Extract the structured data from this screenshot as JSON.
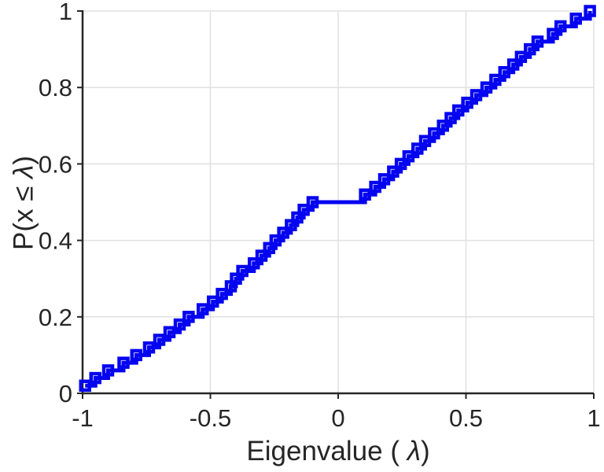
{
  "figure": {
    "background": "#ffffff"
  },
  "labels": {
    "xlabel_prefix": "Eigenvalue (  ",
    "xlabel_lambda": "λ",
    "xlabel_suffix": ")",
    "ylabel_prefix": "P(x ≤ ",
    "ylabel_lambda": "λ",
    "ylabel_suffix": ")"
  },
  "chart_data": {
    "type": "line",
    "subtype": "empirical-cdf-stairs",
    "title": "",
    "xlabel": "Eigenvalue ( λ)",
    "ylabel": "P(x ≤ λ)",
    "xlim": [
      -1,
      1
    ],
    "ylim": [
      0,
      1
    ],
    "xticks": [
      -1,
      -0.5,
      0,
      0.5,
      1
    ],
    "xtick_labels": [
      "-1",
      "-0.5",
      "0",
      "0.5",
      "1"
    ],
    "yticks": [
      0,
      0.2,
      0.4,
      0.6,
      0.8,
      1
    ],
    "ytick_labels": [
      "0",
      "0.2",
      "0.4",
      "0.6",
      "0.8",
      "1"
    ],
    "grid": true,
    "legend_position": "none",
    "colors": {
      "line": "#0404f0",
      "marker_edge": "#0404f0",
      "axis": "#262626",
      "grid": "#e0e0e0",
      "tick_label": "#262626",
      "background": "#ffffff"
    },
    "marker": "square",
    "step": true,
    "series": [
      {
        "name": "eigenvalue-cdf",
        "x": [
          -0.99,
          -0.95,
          -0.9,
          -0.84,
          -0.79,
          -0.74,
          -0.7,
          -0.66,
          -0.62,
          -0.585,
          -0.53,
          -0.49,
          -0.455,
          -0.42,
          -0.4,
          -0.375,
          -0.33,
          -0.3,
          -0.27,
          -0.245,
          -0.215,
          -0.185,
          -0.16,
          -0.135,
          -0.1,
          0.105,
          0.145,
          0.18,
          0.215,
          0.245,
          0.275,
          0.31,
          0.34,
          0.375,
          0.41,
          0.44,
          0.47,
          0.505,
          0.54,
          0.58,
          0.615,
          0.65,
          0.685,
          0.715,
          0.75,
          0.78,
          0.84,
          0.87,
          0.93,
          0.985
        ],
        "y": [
          0.02,
          0.04,
          0.06,
          0.08,
          0.1,
          0.12,
          0.14,
          0.16,
          0.18,
          0.2,
          0.22,
          0.24,
          0.26,
          0.28,
          0.3,
          0.32,
          0.34,
          0.36,
          0.38,
          0.4,
          0.42,
          0.44,
          0.46,
          0.48,
          0.5,
          0.52,
          0.54,
          0.56,
          0.58,
          0.6,
          0.62,
          0.64,
          0.66,
          0.68,
          0.7,
          0.72,
          0.74,
          0.76,
          0.78,
          0.8,
          0.82,
          0.84,
          0.86,
          0.88,
          0.9,
          0.92,
          0.94,
          0.96,
          0.98,
          1.0
        ]
      }
    ]
  }
}
